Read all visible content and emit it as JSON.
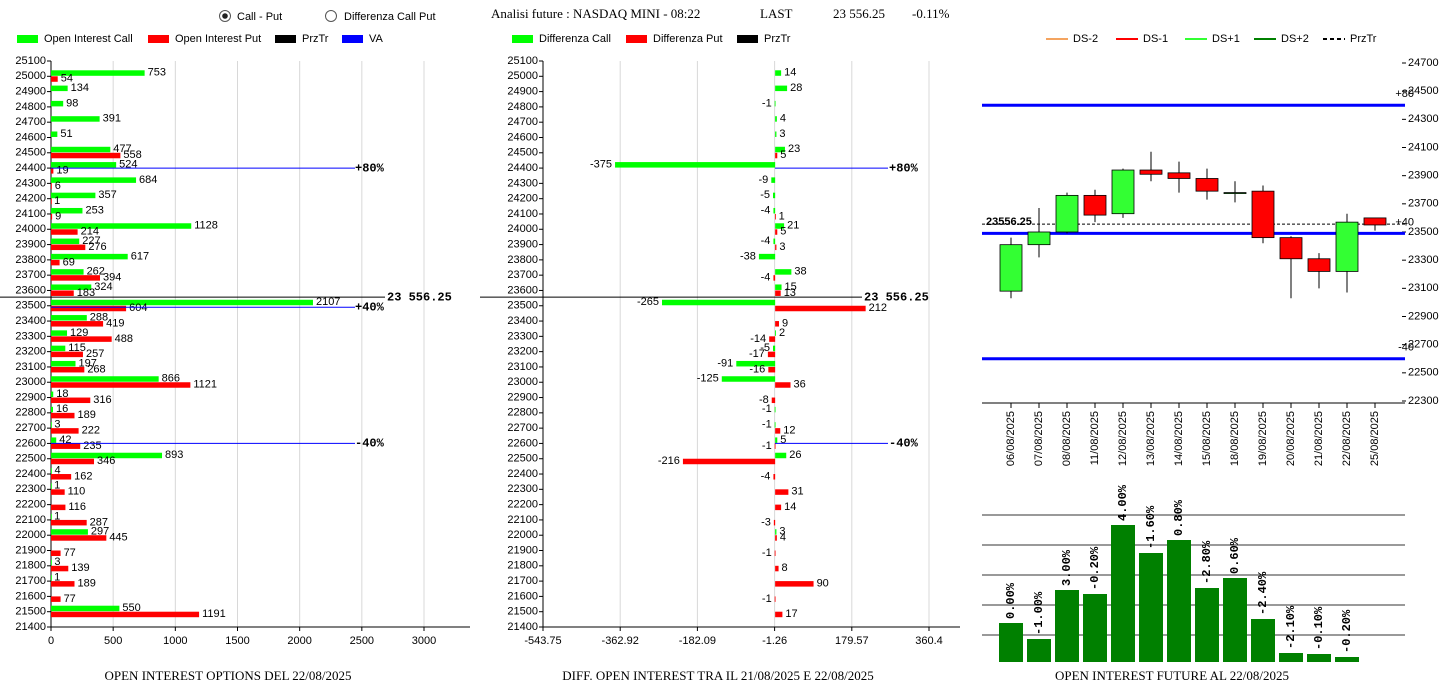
{
  "header": {
    "options": [
      {
        "label": "Call - Put",
        "selected": true
      },
      {
        "label": "Differenza Call Put",
        "selected": false
      }
    ],
    "title": "Analisi future : NASDAQ MINI - 08:22",
    "last_label": "LAST",
    "last": "23 556.25",
    "change": "-0.11%"
  },
  "chart_data": [
    {
      "type": "hbar",
      "title": "OPEN INTEREST OPTIONS DEL 22/08/2025",
      "categories": [
        25100,
        25000,
        24900,
        24800,
        24700,
        24600,
        24500,
        24400,
        24300,
        24200,
        24100,
        24000,
        23900,
        23800,
        23700,
        23600,
        23500,
        23400,
        23300,
        23200,
        23100,
        23000,
        22900,
        22800,
        22700,
        22600,
        22500,
        22400,
        22300,
        22200,
        22100,
        22000,
        21900,
        21800,
        21700,
        21600,
        21500,
        21400
      ],
      "ylim": [
        21400,
        25100
      ],
      "xlim": [
        0,
        3370
      ],
      "xticks": [
        0,
        500,
        1000,
        1500,
        2000,
        2500,
        3000
      ],
      "grid": true,
      "series": [
        {
          "name": "Open Interest Call",
          "color": "#00ff00",
          "values": [
            null,
            753,
            134,
            98,
            391,
            51,
            477,
            524,
            684,
            357,
            253,
            1128,
            227,
            617,
            262,
            324,
            2107,
            288,
            129,
            115,
            197,
            866,
            18,
            16,
            3,
            42,
            893,
            4,
            1,
            null,
            1,
            297,
            null,
            3,
            1,
            null,
            550,
            null
          ]
        },
        {
          "name": "Open Interest Put",
          "color": "#ff0000",
          "values": [
            null,
            54,
            null,
            null,
            null,
            null,
            558,
            19,
            6,
            1,
            9,
            214,
            276,
            69,
            394,
            183,
            604,
            419,
            488,
            257,
            268,
            1121,
            316,
            189,
            222,
            235,
            346,
            162,
            110,
            116,
            287,
            445,
            77,
            139,
            189,
            77,
            1191,
            null
          ]
        }
      ],
      "lines": [
        {
          "name": "PrzTr",
          "color": "#000000",
          "marks": [
            {
              "value": 23556.25,
              "label": "23 556.25"
            }
          ]
        },
        {
          "name": "VA",
          "color": "#0000ff",
          "marks": [
            {
              "value": 24400,
              "label": "+80%"
            },
            {
              "value": 23490,
              "label": "+40%"
            },
            {
              "value": 22600,
              "label": "-40%"
            }
          ]
        }
      ]
    },
    {
      "type": "hbar",
      "title": "DIFF. OPEN INTEREST TRA IL 21/08/2025 E 22/08/2025",
      "categories": [
        25100,
        25000,
        24900,
        24800,
        24700,
        24600,
        24500,
        24400,
        24300,
        24200,
        24100,
        24000,
        23900,
        23800,
        23700,
        23600,
        23500,
        23400,
        23300,
        23200,
        23100,
        23000,
        22900,
        22800,
        22700,
        22600,
        22500,
        22400,
        22300,
        22200,
        22100,
        22000,
        21900,
        21800,
        21700,
        21600,
        21500,
        21400
      ],
      "ylim": [
        21400,
        25100
      ],
      "xlim": [
        -543.75,
        433
      ],
      "xticks": [
        -543.75,
        -362.92,
        -182.09,
        -1.26,
        179.57,
        360.4
      ],
      "grid": true,
      "series": [
        {
          "name": "Differenza Call",
          "color": "#00ff00",
          "values": [
            null,
            14,
            28,
            -1,
            4,
            3,
            23,
            -375,
            -9,
            -5,
            -4,
            21,
            -4,
            -38,
            38,
            15,
            -265,
            null,
            2,
            -5,
            -91,
            -125,
            null,
            -1,
            -1,
            5,
            26,
            null,
            null,
            null,
            null,
            3,
            null,
            null,
            null,
            null,
            null,
            null
          ]
        },
        {
          "name": "Differenza Put",
          "color": "#ff0000",
          "values": [
            null,
            null,
            null,
            null,
            null,
            null,
            5,
            null,
            null,
            null,
            1,
            5,
            3,
            null,
            -4,
            13,
            212,
            9,
            -14,
            -17,
            -16,
            36,
            -8,
            null,
            12,
            -1,
            -216,
            -4,
            31,
            14,
            -3,
            4,
            -1,
            8,
            90,
            -1,
            17,
            null
          ]
        }
      ],
      "lines": [
        {
          "name": "PrzTr",
          "color": "#000000",
          "marks": [
            {
              "value": 23556.25,
              "label": "23 556.25"
            }
          ]
        },
        {
          "color": "#0000ff",
          "marks": [
            {
              "value": 24400,
              "label": "+80%"
            },
            {
              "value": 22600,
              "label": "-40%"
            }
          ]
        }
      ]
    },
    {
      "type": "candlestick",
      "title": "OPEN INTEREST FUTURE AL 22/08/2025",
      "categories": [
        "06/08/2025",
        "07/08/2025",
        "08/08/2025",
        "11/08/2025",
        "12/08/2025",
        "13/08/2025",
        "14/08/2025",
        "15/08/2025",
        "18/08/2025",
        "19/08/2025",
        "20/08/2025",
        "21/08/2025",
        "22/08/2025",
        "25/08/2025"
      ],
      "open": [
        23080,
        23410,
        23500,
        23760,
        23630,
        23940,
        23920,
        23880,
        23780,
        23790,
        23460,
        23310,
        23220,
        23600
      ],
      "high": [
        23460,
        23670,
        23780,
        23800,
        23950,
        24070,
        24000,
        23950,
        23860,
        23830,
        23470,
        23350,
        23630,
        23600
      ],
      "low": [
        23030,
        23320,
        23490,
        23570,
        23600,
        23860,
        23780,
        23730,
        23710,
        23420,
        23030,
        23100,
        23070,
        23510
      ],
      "close": [
        23410,
        23500,
        23760,
        23620,
        23940,
        23910,
        23880,
        23790,
        23780,
        23460,
        23310,
        23220,
        23570,
        23550
      ],
      "up_color": "#33ff33",
      "down_color": "#ff0000",
      "ylim": [
        22300,
        24700
      ],
      "yticks": [
        22300,
        22500,
        22700,
        22900,
        23100,
        23300,
        23500,
        23700,
        23900,
        24100,
        24300,
        24500,
        24700
      ],
      "legend": [
        {
          "name": "DS-2",
          "color": "#f4a460",
          "dash": false
        },
        {
          "name": "DS-1",
          "color": "#ff0000",
          "dash": false
        },
        {
          "name": "DS+1",
          "color": "#33ff33",
          "dash": false
        },
        {
          "name": "DS+2",
          "color": "#008000",
          "dash": false
        },
        {
          "name": "PrzTr",
          "color": "#000000",
          "dash": true
        }
      ],
      "price_line": {
        "value": 23556.25,
        "label": "23556.25",
        "color": "#000000"
      },
      "levels": {
        "color": "#0000ff",
        "marks": [
          {
            "value": 24400,
            "label": "+80"
          },
          {
            "value": 23490,
            "label": "+40"
          },
          {
            "value": 22600,
            "label": "-40"
          }
        ]
      }
    },
    {
      "type": "bar",
      "values": [
        39,
        23,
        72,
        68,
        137,
        109,
        122,
        74,
        84,
        43,
        9,
        8,
        5
      ],
      "changes": [
        0.0,
        -1.0,
        3.0,
        -0.2,
        4.0,
        -1.6,
        0.8,
        -2.8,
        0.6,
        -2.4,
        -2.1,
        -0.1,
        -0.2
      ],
      "change_labels": [
        "0.00%",
        "-1.00%",
        "3.00%",
        "-0.20%",
        "4.00%",
        "-1.60%",
        "0.80%",
        "-2.80%",
        "0.60%",
        "-2.40%",
        "-2.10%",
        "-0.10%",
        "-0.20%"
      ],
      "color": "#008000",
      "ylim": [
        0,
        152
      ],
      "yticks": [
        27,
        57,
        87,
        117,
        147
      ],
      "grid": true
    }
  ]
}
